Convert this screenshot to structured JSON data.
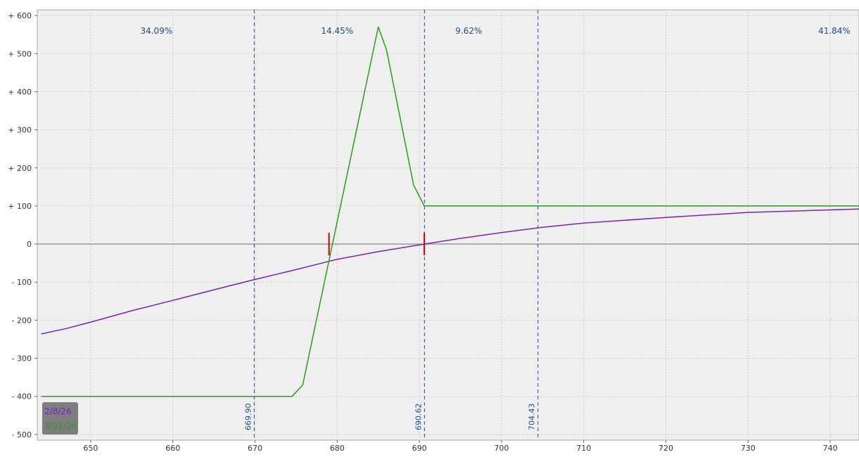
{
  "chart_data": {
    "type": "line",
    "title": "",
    "xlabel": "",
    "ylabel": "",
    "xlim": [
      643.5,
      743.5
    ],
    "ylim": [
      -515,
      615
    ],
    "grid": true,
    "y_ticks": [
      {
        "value": 600,
        "label": "+ 600"
      },
      {
        "value": 500,
        "label": "+ 500"
      },
      {
        "value": 400,
        "label": "+ 400"
      },
      {
        "value": 300,
        "label": "+ 300"
      },
      {
        "value": 200,
        "label": "+ 200"
      },
      {
        "value": 100,
        "label": "+ 100"
      },
      {
        "value": 0,
        "label": "0"
      },
      {
        "value": -100,
        "label": "- 100"
      },
      {
        "value": -200,
        "label": "- 200"
      },
      {
        "value": -300,
        "label": "- 300"
      },
      {
        "value": -400,
        "label": "- 400"
      },
      {
        "value": -500,
        "label": "- 500"
      }
    ],
    "x_ticks": [
      {
        "value": 650,
        "label": "650"
      },
      {
        "value": 660,
        "label": "660"
      },
      {
        "value": 670,
        "label": "670"
      },
      {
        "value": 680,
        "label": "680"
      },
      {
        "value": 690,
        "label": "690"
      },
      {
        "value": 700,
        "label": "700"
      },
      {
        "value": 710,
        "label": "710"
      },
      {
        "value": 720,
        "label": "720"
      },
      {
        "value": 730,
        "label": "730"
      },
      {
        "value": 740,
        "label": "740"
      }
    ],
    "vertical_markers": [
      {
        "value": 669.9,
        "label": "669.90"
      },
      {
        "value": 690.62,
        "label": "690.62"
      },
      {
        "value": 704.43,
        "label": "704.43"
      }
    ],
    "range_labels": [
      {
        "x": 658,
        "label": "34.09%"
      },
      {
        "x": 680,
        "label": "14.45%"
      },
      {
        "x": 696,
        "label": "9.62%"
      },
      {
        "x": 740.5,
        "label": "41.84%"
      }
    ],
    "series": [
      {
        "name": "2/8/26",
        "color": "#7b22b4",
        "x": [
          644,
          647,
          650,
          655,
          660,
          665,
          670,
          675,
          680,
          685,
          690.6,
          695,
          700,
          705,
          710,
          720,
          730,
          743.5
        ],
        "y": [
          -236,
          -222,
          -205,
          -175,
          -148,
          -120,
          -93,
          -67,
          -40,
          -20,
          0,
          15,
          30,
          44,
          55,
          70,
          83,
          92
        ]
      },
      {
        "name": "3/21/26",
        "color": "#2e9a1e",
        "x": [
          644,
          674.5,
          675.8,
          685,
          686,
          689.3,
          690.6,
          743.5
        ],
        "y": [
          -400,
          -400,
          -370,
          570,
          510,
          155,
          100,
          100
        ]
      }
    ],
    "breakeven_marks": [
      {
        "x": 679.0,
        "y": 0,
        "color": "#cc0000"
      },
      {
        "x": 690.6,
        "y": 0,
        "color": "#cc0000"
      }
    ],
    "legend": {
      "placement": "bottom-left",
      "background": "#777777",
      "entries": [
        {
          "label": "2/8/26",
          "color": "#7b22b4"
        },
        {
          "label": "3/21/26",
          "color": "#2e9a1e"
        }
      ]
    },
    "colors": {
      "plot_bg": "#efefef",
      "grid": "#b0b0b0",
      "zero_line": "#999999",
      "marker": "#1f4e8c"
    }
  }
}
